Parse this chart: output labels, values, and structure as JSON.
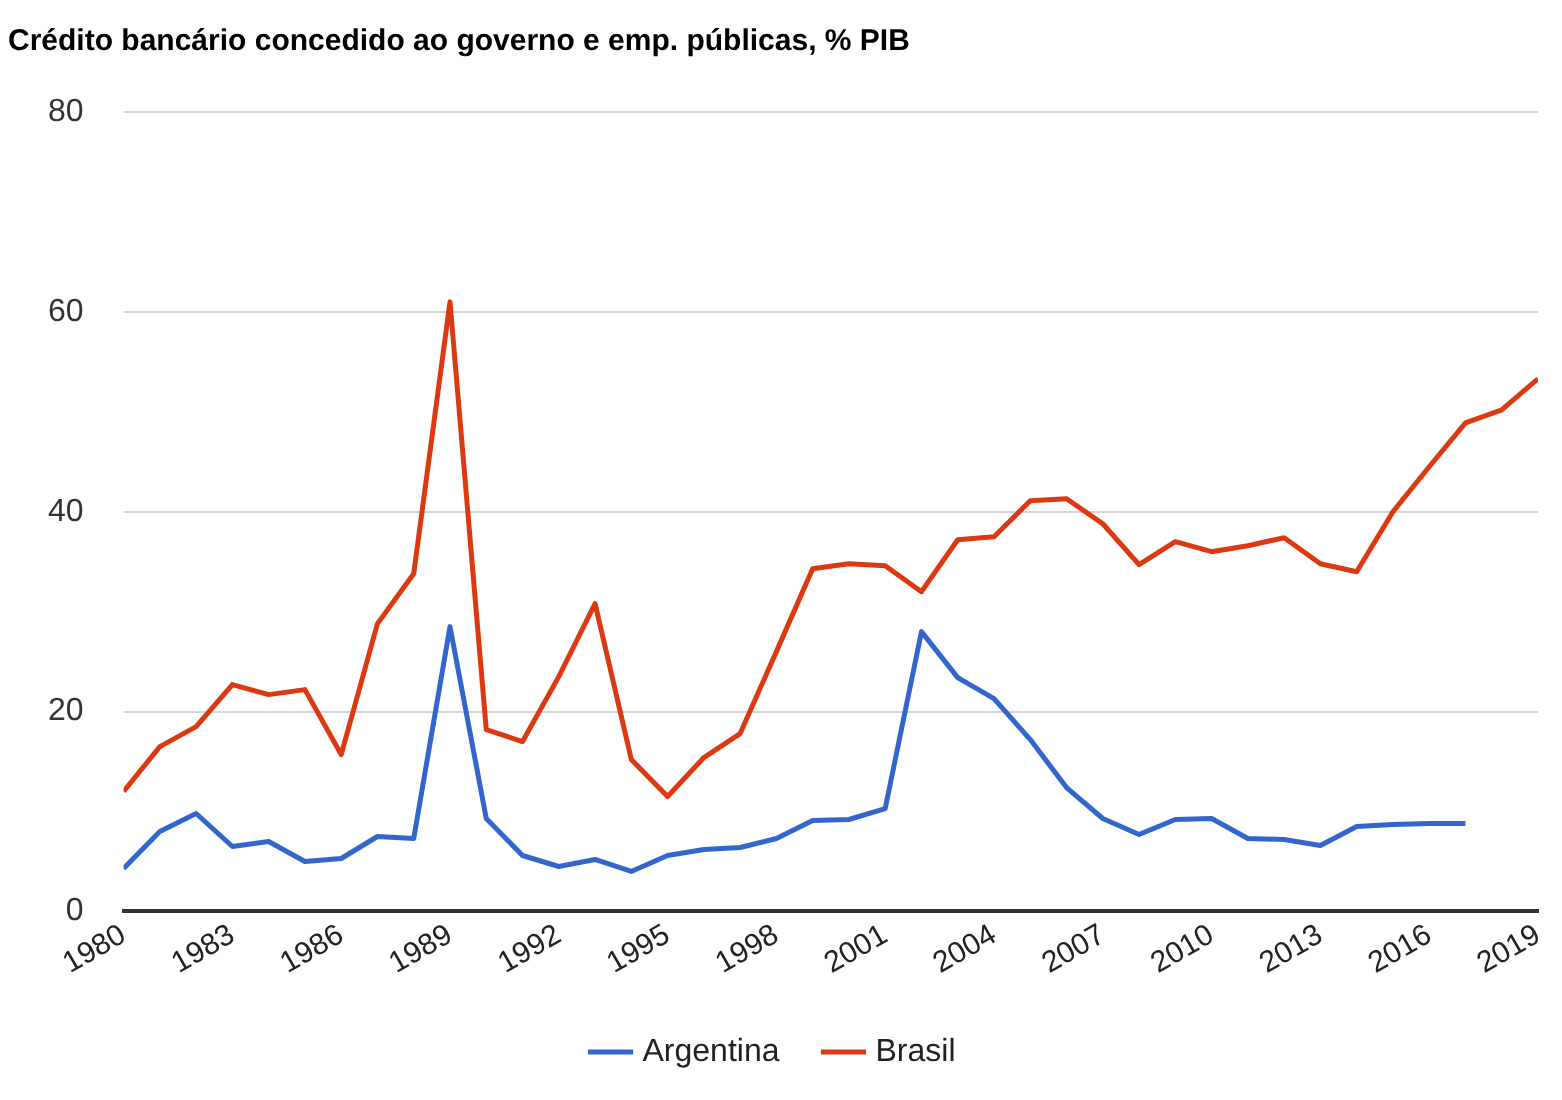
{
  "chart_data": {
    "type": "line",
    "title": "Crédito bancário concedido ao governo e emp. públicas, % PIB",
    "x": [
      1980,
      1981,
      1982,
      1983,
      1984,
      1985,
      1986,
      1987,
      1988,
      1989,
      1990,
      1991,
      1992,
      1993,
      1994,
      1995,
      1996,
      1997,
      1998,
      1999,
      2000,
      2001,
      2002,
      2003,
      2004,
      2005,
      2006,
      2007,
      2008,
      2009,
      2010,
      2011,
      2012,
      2013,
      2014,
      2015,
      2016,
      2017,
      2018,
      2019
    ],
    "series": [
      {
        "name": "Argentina",
        "color": "#3366cc",
        "values": [
          4.3,
          8,
          9.8,
          6.5,
          7,
          5,
          5.3,
          7.5,
          7.3,
          28.5,
          9.3,
          5.6,
          4.5,
          5.2,
          4,
          5.6,
          6.2,
          6.4,
          7.3,
          9.1,
          9.2,
          10.3,
          28,
          23.4,
          21.3,
          17.2,
          12.4,
          9.3,
          7.7,
          9.2,
          9.3,
          7.3,
          7.2,
          6.6,
          8.5,
          8.7,
          8.8,
          8.8,
          null,
          null
        ]
      },
      {
        "name": "Brasil",
        "color": "#dc3912",
        "values": [
          12,
          16.5,
          18.5,
          22.7,
          21.7,
          22.2,
          15.7,
          28.8,
          33.8,
          61,
          18.2,
          17,
          23.5,
          30.8,
          15.2,
          11.5,
          15.4,
          17.8,
          26,
          34.3,
          34.8,
          34.6,
          32,
          37.2,
          37.5,
          41.1,
          41.3,
          38.8,
          34.7,
          37,
          36,
          36.6,
          37.4,
          34.8,
          34,
          40,
          44.5,
          48.9,
          50.2,
          53.3
        ]
      }
    ],
    "xlim": [
      1980,
      2019
    ],
    "xticks": [
      1980,
      1983,
      1986,
      1989,
      1992,
      1995,
      1998,
      2001,
      2004,
      2007,
      2010,
      2013,
      2016,
      2019
    ],
    "ylim": [
      0,
      80
    ],
    "yticks": [
      0,
      20,
      40,
      60,
      80
    ],
    "grid": "y",
    "legend": "bottom",
    "marker": "none",
    "line_style": "solid"
  }
}
